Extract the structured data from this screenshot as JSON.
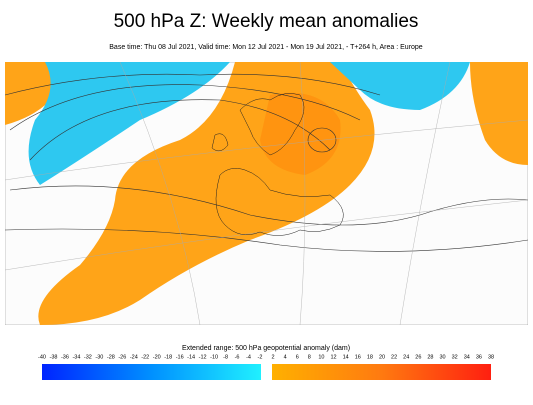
{
  "header": {
    "title": "500 hPa Z: Weekly mean anomalies",
    "subtitle": "Base time: Thu 08 Jul 2021, Valid time: Mon 12 Jul 2021 - Mon 19 Jul 2021, - T+264 h, Area : Europe"
  },
  "colorbar": {
    "label": "Extended range: 500 hPa geopotential anomaly (dam)",
    "negative_ticks": [
      -40,
      -38,
      -36,
      -34,
      -32,
      -30,
      -28,
      -26,
      -24,
      -22,
      -20,
      -18,
      -16,
      -14,
      -12,
      -10,
      -8,
      -6,
      -4,
      -2
    ],
    "positive_ticks": [
      2,
      4,
      6,
      8,
      10,
      12,
      14,
      16,
      18,
      20,
      22,
      24,
      26,
      28,
      30,
      32,
      34,
      36,
      38
    ]
  }
}
